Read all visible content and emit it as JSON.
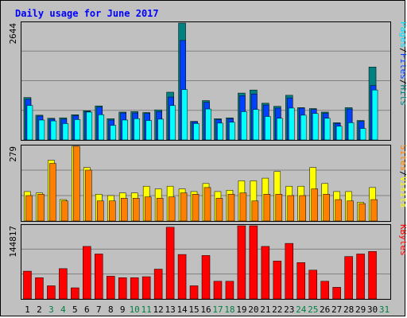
{
  "colors": {
    "background": "#c0c0c0",
    "plot_bg": "#c0c0c0",
    "grid": "#808080",
    "title": "#0000ff",
    "hits": "#00ffff",
    "files": "#0040ff",
    "pages": "#00e0ff",
    "pages_dark": "#008080",
    "visits": "#ffff00",
    "sites": "#ff8000",
    "kbytes": "#ff0000",
    "weekend": "#008040",
    "weekday": "#000000"
  },
  "chart_data": {
    "type": "bar",
    "title": "Daily usage for June 2017",
    "days": [
      "1",
      "2",
      "3",
      "4",
      "5",
      "6",
      "7",
      "8",
      "9",
      "10",
      "11",
      "12",
      "13",
      "14",
      "15",
      "16",
      "17",
      "18",
      "19",
      "20",
      "21",
      "22",
      "23",
      "24",
      "25",
      "26",
      "27",
      "28",
      "29",
      "30",
      "31"
    ],
    "weekend_days": [
      3,
      4,
      10,
      11,
      17,
      18,
      24,
      25,
      31
    ],
    "panels": [
      {
        "name": "requests",
        "ymax_label": "2644",
        "ymax": 2644,
        "side_label_parts": [
          "Pages",
          "/",
          "Files",
          "/",
          "Hits"
        ],
        "series": [
          {
            "name": "Hits",
            "values": [
              960,
              560,
              490,
              500,
              570,
              660,
              770,
              480,
              630,
              640,
              620,
              680,
              1080,
              2644,
              420,
              890,
              480,
              500,
              1060,
              1130,
              830,
              760,
              1010,
              730,
              710,
              630,
              390,
              730,
              440,
              1650,
              0
            ]
          },
          {
            "name": "Files",
            "values": [
              920,
              540,
              470,
              470,
              550,
              640,
              740,
              450,
              610,
              610,
              600,
              640,
              970,
              2250,
              410,
              850,
              460,
              480,
              1000,
              1040,
              790,
              720,
              950,
              720,
              690,
              600,
              370,
              700,
              420,
              1230,
              0
            ]
          },
          {
            "name": "Pages",
            "values": [
              780,
              450,
              430,
              370,
              460,
              630,
              570,
              330,
              450,
              480,
              440,
              470,
              780,
              1140,
              370,
              700,
              380,
              400,
              640,
              690,
              530,
              490,
              720,
              560,
              600,
              490,
              310,
              390,
              260,
              1130,
              0
            ]
          }
        ]
      },
      {
        "name": "visitors",
        "ymax_label": "279",
        "ymax": 279,
        "side_label_parts": [
          "Sites",
          "/",
          "Visits"
        ],
        "series": [
          {
            "name": "Visits",
            "values": [
              110,
              105,
              227,
              80,
              279,
              200,
              100,
              95,
              105,
              105,
              130,
              120,
              130,
              120,
              110,
              140,
              110,
              115,
              150,
              150,
              160,
              185,
              130,
              130,
              200,
              140,
              110,
              110,
              70,
              125,
              0
            ]
          },
          {
            "name": "Sites",
            "values": [
              95,
              100,
              215,
              75,
              279,
              190,
              75,
              75,
              85,
              85,
              90,
              85,
              90,
              105,
              100,
              125,
              85,
              100,
              105,
              75,
              100,
              100,
              95,
              95,
              120,
              100,
              80,
              75,
              65,
              80,
              0
            ]
          }
        ]
      },
      {
        "name": "volume",
        "ymax_label": "144817",
        "ymax": 144817,
        "side_label_parts": [
          "KBytes"
        ],
        "series": [
          {
            "name": "KBytes",
            "values": [
              55000,
              42000,
              26000,
              60000,
              22000,
              104000,
              89000,
              45000,
              42000,
              42000,
              44000,
              59000,
              142000,
              88000,
              26000,
              86000,
              35000,
              35000,
              144817,
              144817,
              104000,
              75000,
              110000,
              72000,
              57000,
              35000,
              23000,
              84000,
              89000,
              94000,
              0
            ]
          }
        ]
      }
    ]
  }
}
